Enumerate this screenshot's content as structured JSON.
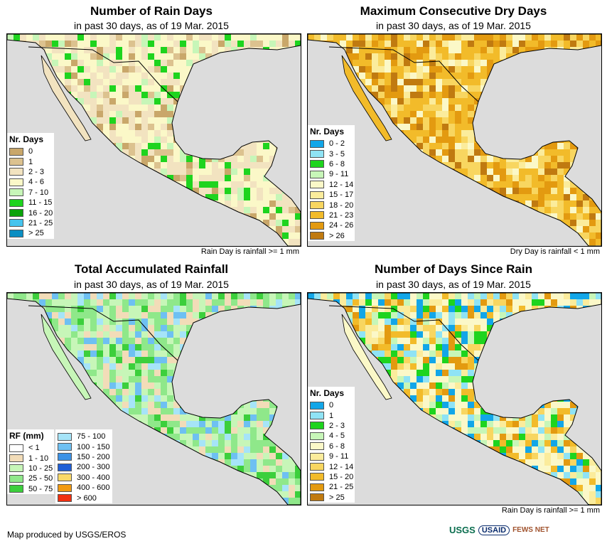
{
  "panels": [
    {
      "title": "Number of Rain Days",
      "subtitle": "in past 30 days, as of 19 Mar. 2015",
      "note": "Rain Day is rainfall >= 1 mm",
      "legend_title": "Nr. Days",
      "legend": [
        {
          "label": "0",
          "color": "#c9a76a"
        },
        {
          "label": "1",
          "color": "#dcc28f"
        },
        {
          "label": "2 - 3",
          "color": "#f2e3c0"
        },
        {
          "label": "4 - 6",
          "color": "#fbf8c8"
        },
        {
          "label": "7 - 10",
          "color": "#c7f6b8"
        },
        {
          "label": "11 - 15",
          "color": "#1ed41e"
        },
        {
          "label": "16 - 20",
          "color": "#0aa30a"
        },
        {
          "label": "21 - 25",
          "color": "#46c4ee"
        },
        {
          "label": "> 25",
          "color": "#0a8ec2"
        }
      ]
    },
    {
      "title": "Maximum Consecutive Dry Days",
      "subtitle": "in past 30 days, as of 19 Mar. 2015",
      "note": "Dry Day is rainfall < 1 mm",
      "legend_title": "Nr. Days",
      "legend": [
        {
          "label": "0 - 2",
          "color": "#12a6e8"
        },
        {
          "label": "3 - 5",
          "color": "#8fe3f5"
        },
        {
          "label": "6 - 8",
          "color": "#1ed41e"
        },
        {
          "label": "9 - 11",
          "color": "#c7f6b8"
        },
        {
          "label": "12 - 14",
          "color": "#fbf8c8"
        },
        {
          "label": "15 - 17",
          "color": "#fbec9c"
        },
        {
          "label": "18 - 20",
          "color": "#f8d660"
        },
        {
          "label": "21 - 23",
          "color": "#f2bb2a"
        },
        {
          "label": "24 - 26",
          "color": "#e39a10"
        },
        {
          "label": "> 26",
          "color": "#c07a10"
        }
      ]
    },
    {
      "title": "Total Accumulated Rainfall",
      "subtitle": "in past 30 days, as of 19 Mar. 2015",
      "note": "",
      "legend_title": "RF (mm)",
      "legend": [
        {
          "label": "< 1",
          "color": "#ffffff"
        },
        {
          "label": "1 - 10",
          "color": "#f2dcb8"
        },
        {
          "label": "10 - 25",
          "color": "#c7f6b8"
        },
        {
          "label": "25 - 50",
          "color": "#8fe88a"
        },
        {
          "label": "50 - 75",
          "color": "#3ccf3c"
        }
      ],
      "legend2": [
        {
          "label": "75 - 100",
          "color": "#a6e4f8"
        },
        {
          "label": "100 - 150",
          "color": "#6ec0f2"
        },
        {
          "label": "150 - 200",
          "color": "#3c92e6"
        },
        {
          "label": "200 - 300",
          "color": "#1e5fd6"
        },
        {
          "label": "300 - 400",
          "color": "#fbd968"
        },
        {
          "label": "400 - 600",
          "color": "#f29a10"
        },
        {
          "label": "> 600",
          "color": "#f03010"
        }
      ]
    },
    {
      "title": "Number of Days Since Rain",
      "subtitle": "in past 30 days, as of 19 Mar. 2015",
      "note": "Rain Day is rainfall >= 1 mm",
      "legend_title": "Nr. Days",
      "legend": [
        {
          "label": "0",
          "color": "#12a6e8"
        },
        {
          "label": "1",
          "color": "#8fe3f5"
        },
        {
          "label": "2 - 3",
          "color": "#1ed41e"
        },
        {
          "label": "4 - 5",
          "color": "#c7f6b8"
        },
        {
          "label": "6 - 8",
          "color": "#fbf8c8"
        },
        {
          "label": "9 - 11",
          "color": "#fbec9c"
        },
        {
          "label": "12 - 14",
          "color": "#f8d660"
        },
        {
          "label": "15 - 20",
          "color": "#f2bb2a"
        },
        {
          "label": "21 - 25",
          "color": "#e39a10"
        },
        {
          "label": "> 25",
          "color": "#c07a10"
        }
      ]
    }
  ],
  "credit": "Map produced by USGS/EROS",
  "logos": {
    "usgs": "USGS",
    "usaid": "USAID",
    "fews": "FEWS NET"
  }
}
